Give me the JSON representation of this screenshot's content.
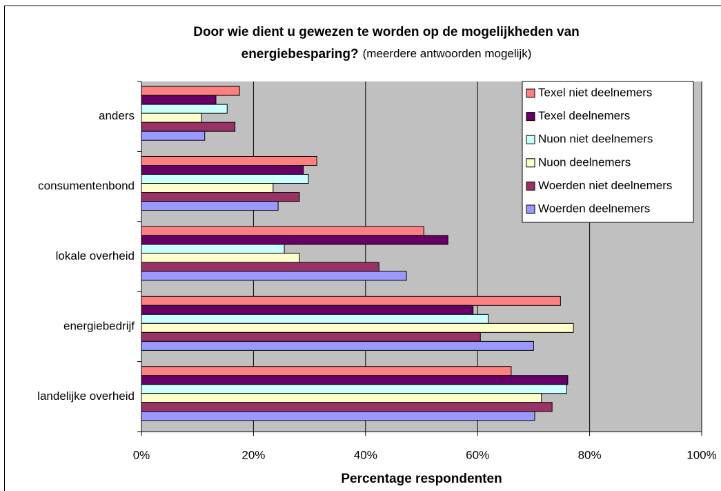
{
  "chart_data": {
    "type": "hbar",
    "title_lines": [
      "Door wie dient u gewezen te worden op de mogelijkheden van",
      "energiebesparing?"
    ],
    "subtitle": "(meerdere antwoorden mogelijk)",
    "x_label": "Percentage respondenten",
    "categories": [
      "anders",
      "consumentenbond",
      "lokale overheid",
      "energiebedrijf",
      "landelijke overheid"
    ],
    "series": [
      {
        "name": "Texel niet deelnemers",
        "color": "#ff8080",
        "values": [
          17.5,
          31.3,
          50.4,
          74.8,
          66.0
        ]
      },
      {
        "name": "Texel deelnemers",
        "color": "#660066",
        "values": [
          13.3,
          28.9,
          54.7,
          59.2,
          76.1
        ]
      },
      {
        "name": "Nuon niet deelnemers",
        "color": "#ccffff",
        "values": [
          15.3,
          29.8,
          25.5,
          61.9,
          75.9
        ]
      },
      {
        "name": "Nuon deelnemers",
        "color": "#ffffcc",
        "values": [
          10.7,
          23.5,
          28.2,
          77.1,
          71.4
        ]
      },
      {
        "name": "Woerden niet deelnemers",
        "color": "#993366",
        "values": [
          16.7,
          28.2,
          42.4,
          60.5,
          73.3
        ]
      },
      {
        "name": "Woerden deelnemers",
        "color": "#9999ff",
        "values": [
          11.3,
          24.4,
          47.3,
          70.0,
          70.2
        ]
      }
    ],
    "xlim": [
      0,
      100
    ],
    "xticks": [
      {
        "value": 0,
        "label": "0%"
      },
      {
        "value": 20,
        "label": "20%"
      },
      {
        "value": 40,
        "label": "40%"
      },
      {
        "value": 60,
        "label": "60%"
      },
      {
        "value": 80,
        "label": "80%"
      },
      {
        "value": 100,
        "label": "100%"
      }
    ],
    "grid": true,
    "legend": "top-right"
  }
}
